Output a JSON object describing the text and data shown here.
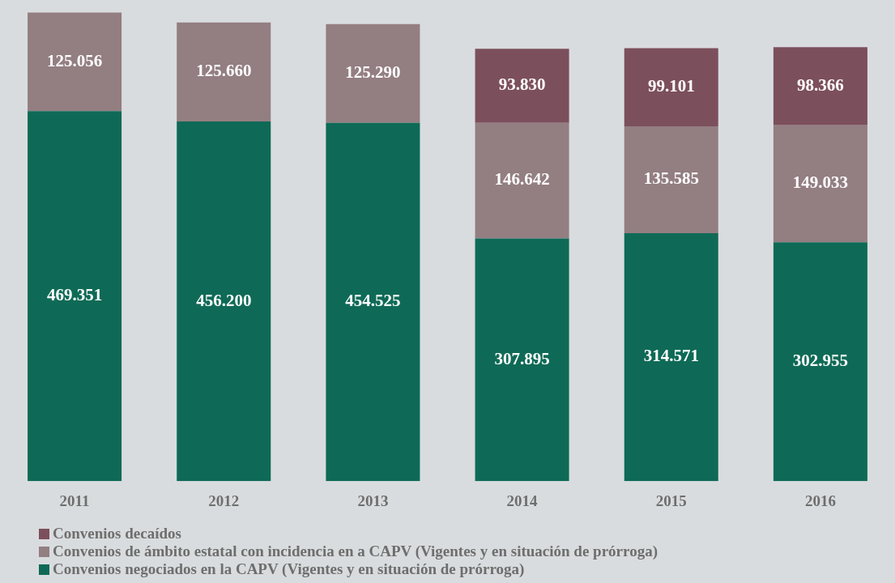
{
  "chart_data": {
    "type": "bar",
    "stacked": true,
    "categories": [
      "2011",
      "2012",
      "2013",
      "2014",
      "2015",
      "2016"
    ],
    "series": [
      {
        "name": "Convenios negociados en la CAPV (Vigentes y en situación de prórroga)",
        "color": "#0e6a56",
        "values": [
          469351,
          456200,
          454525,
          307895,
          314571,
          302955
        ],
        "value_labels": [
          "469.351",
          "456.200",
          "454.525",
          "307.895",
          "314.571",
          "302.955"
        ]
      },
      {
        "name": "Convenios de ámbito estatal con incidencia en a CAPV (Vigentes y en situación de prórroga)",
        "color": "#937e82",
        "values": [
          125056,
          125660,
          125290,
          146642,
          135585,
          149033
        ],
        "value_labels": [
          "125.056",
          "125.660",
          "125.290",
          "146.642",
          "135.585",
          "149.033"
        ]
      },
      {
        "name": "Convenios decaídos",
        "color": "#7c4f5c",
        "values": [
          null,
          null,
          null,
          93830,
          99101,
          98366
        ],
        "value_labels": [
          null,
          null,
          null,
          "93.830",
          "99.101",
          "98.366"
        ]
      }
    ],
    "legend": "bottom left",
    "grid": false
  }
}
